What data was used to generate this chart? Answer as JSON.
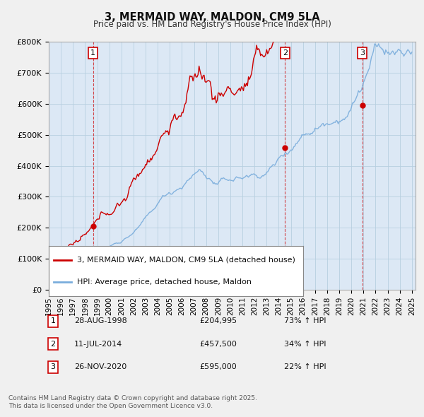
{
  "title": "3, MERMAID WAY, MALDON, CM9 5LA",
  "subtitle": "Price paid vs. HM Land Registry's House Price Index (HPI)",
  "legend_line1": "3, MERMAID WAY, MALDON, CM9 5LA (detached house)",
  "legend_line2": "HPI: Average price, detached house, Maldon",
  "sale_color": "#cc0000",
  "hpi_color": "#7aaddc",
  "vline_color": "#cc0000",
  "bg_color": "#f0f0f0",
  "plot_bg": "#dce8f5",
  "ylim": [
    0,
    800000
  ],
  "yticks": [
    0,
    100000,
    200000,
    300000,
    400000,
    500000,
    600000,
    700000,
    800000
  ],
  "ytick_labels": [
    "£0",
    "£100K",
    "£200K",
    "£300K",
    "£400K",
    "£500K",
    "£600K",
    "£700K",
    "£800K"
  ],
  "sales": [
    {
      "date": 1998.65,
      "price": 204995,
      "label": "1",
      "display_date": "28-AUG-1998",
      "display_price": "£204,995",
      "display_hpi": "73% ↑ HPI"
    },
    {
      "date": 2014.52,
      "price": 457500,
      "label": "2",
      "display_date": "11-JUL-2014",
      "display_price": "£457,500",
      "display_hpi": "34% ↑ HPI"
    },
    {
      "date": 2020.9,
      "price": 595000,
      "label": "3",
      "display_date": "26-NOV-2020",
      "display_price": "£595,000",
      "display_hpi": "22% ↑ HPI"
    }
  ],
  "footer1": "Contains HM Land Registry data © Crown copyright and database right 2025.",
  "footer2": "This data is licensed under the Open Government Licence v3.0."
}
